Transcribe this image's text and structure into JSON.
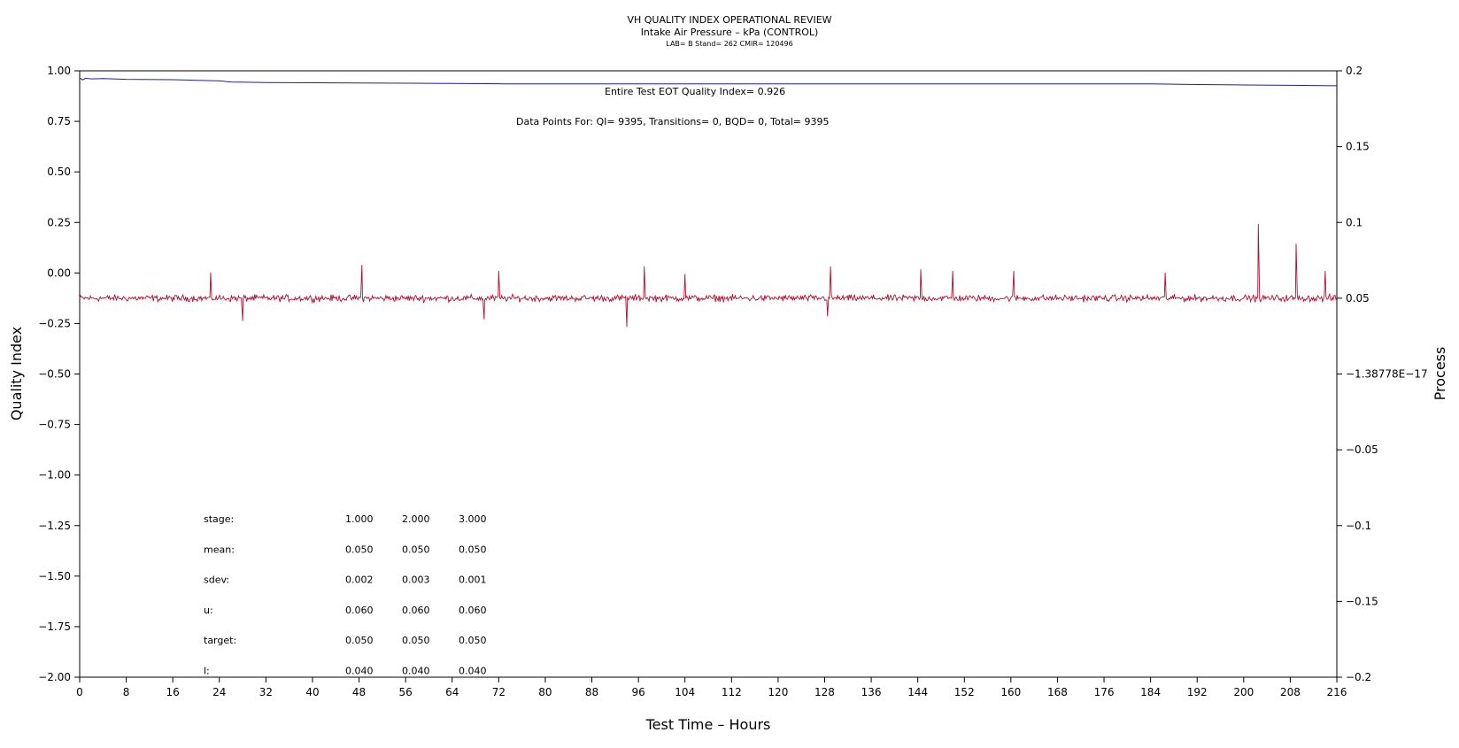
{
  "chart_data": {
    "type": "line",
    "title": "VH QUALITY INDEX OPERATIONAL REVIEW",
    "subtitle": "Intake Air Pressure – kPa (CONTROL)",
    "subtitle2": "LAB= B Stand= 262 CMIR= 120496",
    "xlabel": "Test Time – Hours",
    "ylabel": "Quality Index",
    "y2label": "Process",
    "xlim": [
      0,
      216
    ],
    "ylim": [
      -2.0,
      1.0
    ],
    "y2lim": [
      -0.2,
      0.2
    ],
    "x_ticks": [
      "0",
      "8",
      "16",
      "24",
      "32",
      "40",
      "48",
      "56",
      "64",
      "72",
      "80",
      "88",
      "96",
      "104",
      "112",
      "120",
      "128",
      "136",
      "144",
      "152",
      "160",
      "168",
      "176",
      "184",
      "192",
      "200",
      "208",
      "216"
    ],
    "y_ticks": [
      "1.00",
      "0.75",
      "0.50",
      "0.25",
      "0.00",
      "−0.25",
      "−0.50",
      "−0.75",
      "−1.00",
      "−1.25",
      "−1.50",
      "−1.75",
      "−2.00"
    ],
    "y2_ticks": [
      "0.2",
      "0.15",
      "0.1",
      "0.05",
      "−1.38778E−17",
      "−0.05",
      "−0.1",
      "−0.15",
      "−0.2"
    ],
    "grid": false,
    "annotations": {
      "qi_text": "Entire Test EOT Quality Index=   0.926",
      "points_text": "Data Points For: QI=  9395, Transitions=     0, BQD=     0, Total=  9395"
    },
    "series": [
      {
        "axis": "left",
        "color": "#1f1f9f",
        "x": [
          0,
          0.5,
          1,
          2,
          4,
          8,
          16,
          24,
          26,
          32,
          48,
          64,
          72,
          73,
          96,
          120,
          144,
          168,
          176,
          184,
          192,
          200,
          208,
          216
        ],
        "y": [
          0.965,
          0.955,
          0.963,
          0.96,
          0.962,
          0.958,
          0.956,
          0.95,
          0.945,
          0.942,
          0.94,
          0.938,
          0.936,
          0.935,
          0.935,
          0.935,
          0.935,
          0.935,
          0.935,
          0.935,
          0.932,
          0.93,
          0.928,
          0.926
        ]
      },
      {
        "axis": "right",
        "color": "#b01030",
        "base": 0.05,
        "noise_sdev": 0.002,
        "spikes": [
          {
            "x": 22.5,
            "y": 0.067
          },
          {
            "x": 28,
            "y": 0.035
          },
          {
            "x": 48.5,
            "y": 0.072
          },
          {
            "x": 69.5,
            "y": 0.036
          },
          {
            "x": 72,
            "y": 0.068
          },
          {
            "x": 94,
            "y": 0.031
          },
          {
            "x": 97,
            "y": 0.071
          },
          {
            "x": 104,
            "y": 0.066
          },
          {
            "x": 128.5,
            "y": 0.038
          },
          {
            "x": 129,
            "y": 0.071
          },
          {
            "x": 144.5,
            "y": 0.069
          },
          {
            "x": 150,
            "y": 0.068
          },
          {
            "x": 160.5,
            "y": 0.068
          },
          {
            "x": 186.5,
            "y": 0.067
          },
          {
            "x": 202.5,
            "y": 0.099
          },
          {
            "x": 209,
            "y": 0.086
          },
          {
            "x": 214,
            "y": 0.068
          }
        ]
      }
    ],
    "stats_table": {
      "rows": [
        {
          "label": "stage:",
          "values": [
            "1.000",
            "2.000",
            "3.000"
          ]
        },
        {
          "label": "mean:",
          "values": [
            "0.050",
            "0.050",
            "0.050"
          ]
        },
        {
          "label": "sdev:",
          "values": [
            "0.002",
            "0.003",
            "0.001"
          ]
        },
        {
          "label": "u:",
          "values": [
            "0.060",
            "0.060",
            "0.060"
          ]
        },
        {
          "label": "target:",
          "values": [
            "0.050",
            "0.050",
            "0.050"
          ]
        },
        {
          "label": "l:",
          "values": [
            "0.040",
            "0.040",
            "0.040"
          ]
        }
      ]
    }
  }
}
